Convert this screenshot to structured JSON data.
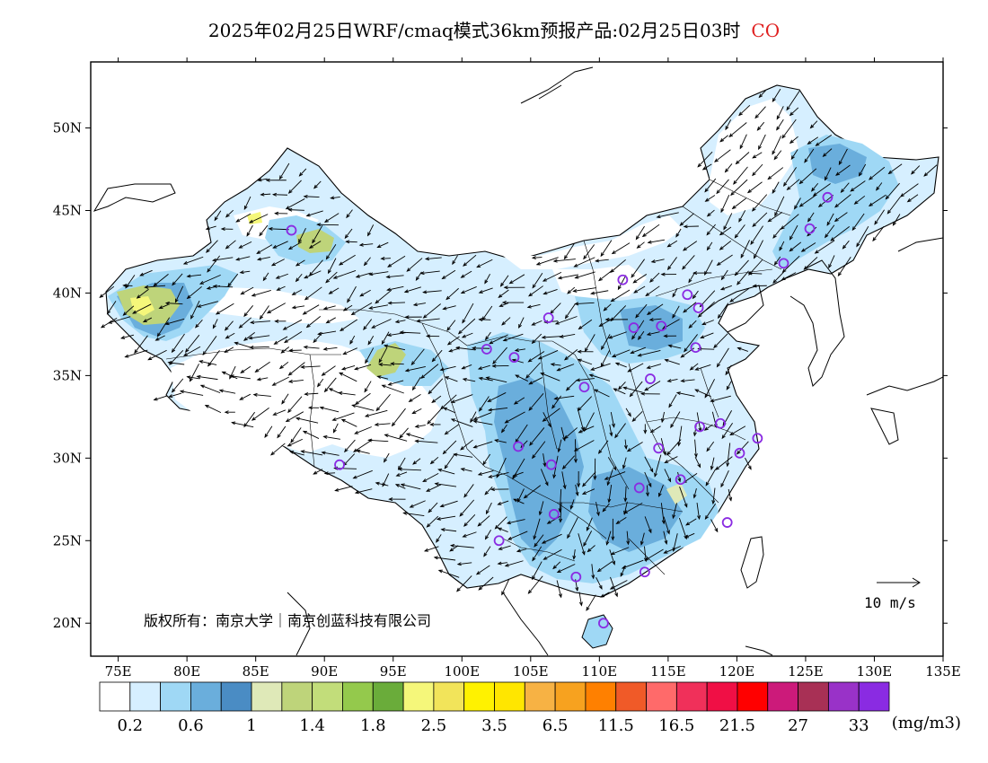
{
  "title": {
    "text": "2025年02月25日WRF/cmaq模式36km预报产品:02月25日03时",
    "species": "CO",
    "species_color": "#e02020"
  },
  "map": {
    "lon_labels": [
      "75E",
      "80E",
      "85E",
      "90E",
      "95E",
      "100E",
      "105E",
      "110E",
      "115E",
      "120E",
      "125E",
      "130E",
      "135E"
    ],
    "lat_labels": [
      "20N",
      "25N",
      "30N",
      "35N",
      "40N",
      "45N",
      "50N"
    ],
    "lon_range": [
      73,
      135
    ],
    "lat_range": [
      18,
      54
    ],
    "copyright": "版权所有：南京大学｜南京创蓝科技有限公司",
    "wind_reference": {
      "label": "10 m/s",
      "speed": 10
    }
  },
  "colorbar": {
    "unit": "(mg/m3)",
    "colors": [
      "#ffffff",
      "#d6efff",
      "#9fd8f5",
      "#6aaedc",
      "#4a8cc4",
      "#dfe9b8",
      "#bed47a",
      "#c2dd7a",
      "#94c94c",
      "#6aac3a",
      "#f5f77a",
      "#f2e45a",
      "#fff200",
      "#ffe600",
      "#f7b244",
      "#f7a21f",
      "#ff8000",
      "#f05a28",
      "#ff6a6a",
      "#f0305a",
      "#f00f45",
      "#ff0000",
      "#cc1a7a",
      "#a83055",
      "#9932c8",
      "#8a2be2"
    ],
    "labels": [
      "0.2",
      "0.6",
      "1",
      "1.4",
      "1.8",
      "2.5",
      "3.5",
      "6.5",
      "11.5",
      "16.5",
      "21.5",
      "27",
      "33"
    ]
  },
  "cities": [
    {
      "lon": 87.6,
      "lat": 43.8
    },
    {
      "lon": 91.1,
      "lat": 29.6
    },
    {
      "lon": 101.8,
      "lat": 36.6
    },
    {
      "lon": 103.8,
      "lat": 36.1
    },
    {
      "lon": 106.3,
      "lat": 38.5
    },
    {
      "lon": 104.1,
      "lat": 30.7
    },
    {
      "lon": 106.5,
      "lat": 29.6
    },
    {
      "lon": 106.7,
      "lat": 26.6
    },
    {
      "lon": 102.7,
      "lat": 25.0
    },
    {
      "lon": 108.3,
      "lat": 22.8
    },
    {
      "lon": 110.3,
      "lat": 20.0
    },
    {
      "lon": 108.9,
      "lat": 34.3
    },
    {
      "lon": 111.7,
      "lat": 40.8
    },
    {
      "lon": 112.5,
      "lat": 37.9
    },
    {
      "lon": 114.5,
      "lat": 38.0
    },
    {
      "lon": 113.7,
      "lat": 34.8
    },
    {
      "lon": 114.3,
      "lat": 30.6
    },
    {
      "lon": 112.9,
      "lat": 28.2
    },
    {
      "lon": 113.3,
      "lat": 23.1
    },
    {
      "lon": 115.9,
      "lat": 28.7
    },
    {
      "lon": 117.3,
      "lat": 31.9
    },
    {
      "lon": 118.8,
      "lat": 32.1
    },
    {
      "lon": 120.2,
      "lat": 30.3
    },
    {
      "lon": 121.5,
      "lat": 31.2
    },
    {
      "lon": 119.3,
      "lat": 26.1
    },
    {
      "lon": 117.0,
      "lat": 36.7
    },
    {
      "lon": 116.4,
      "lat": 39.9
    },
    {
      "lon": 117.2,
      "lat": 39.1
    },
    {
      "lon": 123.4,
      "lat": 41.8
    },
    {
      "lon": 125.3,
      "lat": 43.9
    },
    {
      "lon": 126.6,
      "lat": 45.8
    }
  ]
}
